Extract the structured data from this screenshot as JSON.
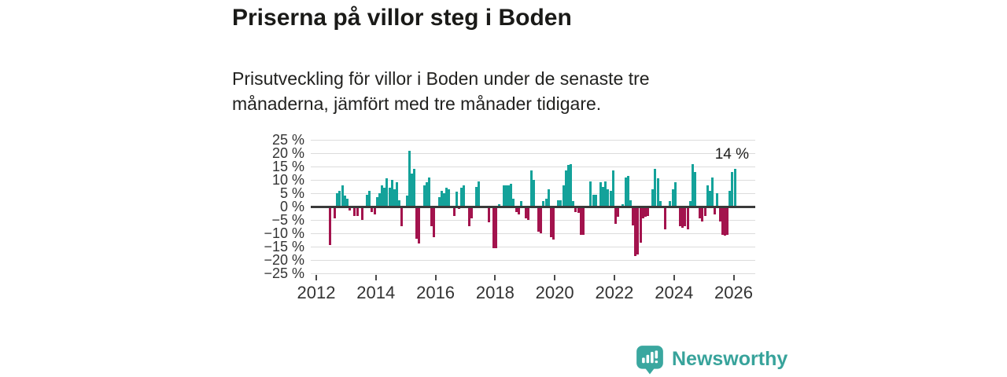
{
  "header": {
    "title": "Priserna på villor steg i Boden",
    "subtitle": "Prisutveckling för villor i Boden under de senaste tre månaderna, jämfört med tre månader tidigare."
  },
  "chart_data": {
    "type": "bar",
    "title": "Priserna på villor steg i Boden",
    "xlabel": "",
    "ylabel": "",
    "ylim": [
      -25,
      25
    ],
    "grid": true,
    "y_tick_labels": [
      "25 %",
      "20 %",
      "15 %",
      "10 %",
      "5 %",
      "0 %",
      "−5 %",
      "−10 %",
      "−15 %",
      "−20 %",
      "−25 %"
    ],
    "x_tick_labels": [
      "2012",
      "2014",
      "2016",
      "2018",
      "2020",
      "2022",
      "2024",
      "2026"
    ],
    "x_start": "2012-06",
    "x_step_months": 1,
    "unit": "%",
    "annotation": {
      "text": "14 %",
      "value": 14
    },
    "colors": {
      "positive": "#14a29a",
      "negative": "#a3134d"
    },
    "values": [
      -14,
      0,
      -4,
      5,
      6,
      8,
      4,
      3,
      -1,
      0,
      -3,
      -3,
      0,
      -4.5,
      0,
      4.5,
      6,
      -1.5,
      -2.5,
      3.5,
      5,
      8,
      7,
      10.5,
      7,
      10,
      6.5,
      9,
      2.5,
      -7,
      0,
      4,
      21,
      12.5,
      14,
      -11.5,
      -13.5,
      0,
      8,
      9,
      11,
      -7,
      -11,
      0,
      3.5,
      6,
      5,
      7,
      6.5,
      0,
      -3,
      5.5,
      -0.5,
      7,
      8,
      0,
      -7,
      -4,
      0,
      7.5,
      9.5,
      0,
      0,
      0,
      -5.5,
      0,
      -15,
      -15,
      1,
      0,
      8,
      8,
      8,
      8.5,
      3,
      -1.5,
      -2.5,
      2,
      0,
      -4,
      -4.5,
      13.5,
      10,
      0,
      -9,
      -9.5,
      2,
      3,
      6.5,
      -11,
      -12,
      0,
      2.5,
      2.5,
      8,
      13.5,
      15.5,
      16,
      2,
      -1.5,
      -2,
      -10,
      -10,
      0,
      0,
      9.5,
      4.5,
      4.5,
      0,
      9,
      7.5,
      9.5,
      6.5,
      6,
      13.5,
      -6,
      -3.5,
      0,
      1,
      11,
      11.5,
      2.5,
      -6.5,
      -18,
      -17.5,
      -13,
      -4,
      -3.5,
      -3,
      0,
      6.5,
      14,
      10.5,
      2,
      0,
      -8,
      0,
      2,
      6.5,
      9,
      0,
      -7,
      -7.5,
      -7,
      -8,
      2,
      16,
      13,
      0,
      -4,
      -5,
      -3,
      8,
      6,
      11,
      -2.5,
      5,
      -5,
      -10,
      -10.5,
      -10,
      6,
      13,
      14
    ]
  },
  "logo": {
    "text": "Newsworthy",
    "brand_color": "#38a39b"
  }
}
